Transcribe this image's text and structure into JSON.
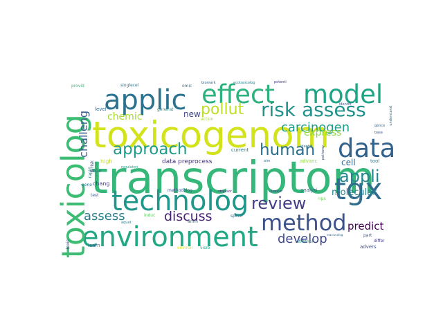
{
  "words": [
    {
      "text": "transcriptom",
      "color": "#35b779"
    },
    {
      "text": "toxicogenom",
      "color": "#d2e21b"
    },
    {
      "text": "environment",
      "color": "#22a884"
    },
    {
      "text": "effect",
      "color": "#2db27d"
    },
    {
      "text": "model",
      "color": "#20a486"
    },
    {
      "text": "applic",
      "color": "#2c728e"
    },
    {
      "text": "technolog",
      "color": "#1f988b"
    },
    {
      "text": "toxicolog",
      "color": "#3dbc74"
    },
    {
      "text": "data",
      "color": "#33638d"
    },
    {
      "text": "tgx",
      "color": "#2f6c8e"
    },
    {
      "text": "method",
      "color": "#3b528b"
    },
    {
      "text": "risk assess",
      "color": "#21918c"
    },
    {
      "text": "approach",
      "color": "#1e9b8a"
    },
    {
      "text": "human",
      "color": "#2d708e"
    },
    {
      "text": "review",
      "color": "#433e85"
    },
    {
      "text": "appli",
      "color": "#24868e"
    },
    {
      "text": "pollut",
      "color": "#bddf26"
    },
    {
      "text": "carcinogen",
      "color": "#1f9e89"
    },
    {
      "text": "discuss",
      "color": "#482173"
    },
    {
      "text": "assess",
      "color": "#26818e"
    },
    {
      "text": "develop",
      "color": "#3e4989"
    },
    {
      "text": "predict",
      "color": "#440154"
    },
    {
      "text": "chemic",
      "color": "#a8db34"
    },
    {
      "text": "challeng",
      "color": "#355f8d"
    },
    {
      "text": "express",
      "color": "#8ed645"
    },
    {
      "text": "molecular",
      "color": "#25838e"
    },
    {
      "text": "cell",
      "color": "#31688e"
    },
    {
      "text": "new",
      "color": "#3f4788"
    },
    {
      "text": "data preprocess",
      "color": "#46337e"
    },
    {
      "text": "current",
      "color": "#2a788e"
    },
    {
      "text": "high",
      "color": "#c2df23"
    },
    {
      "text": "level",
      "color": "#31688e"
    },
    {
      "text": "generat",
      "color": "#21918c"
    },
    {
      "text": "chang",
      "color": "#433e85"
    },
    {
      "text": "test",
      "color": "#3b528b"
    },
    {
      "text": "gene",
      "color": "#2c728e"
    },
    {
      "text": "learn",
      "color": "#33638d"
    },
    {
      "text": "toxic",
      "color": "#414487"
    },
    {
      "text": "accur",
      "color": "#3e4989"
    },
    {
      "text": "rapid",
      "color": "#26828e"
    },
    {
      "text": "risk",
      "color": "#3b528b"
    },
    {
      "text": "provid",
      "color": "#35b779"
    },
    {
      "text": "singlecel",
      "color": "#2a788e"
    },
    {
      "text": "omic",
      "color": "#2c728e"
    },
    {
      "text": "biomark",
      "color": "#31688e"
    },
    {
      "text": "ecotoxicolog",
      "color": "#26828e"
    },
    {
      "text": "potenti",
      "color": "#443983"
    },
    {
      "text": "action",
      "color": "#a8db34"
    },
    {
      "text": "regulatori",
      "color": "#1fa187"
    },
    {
      "text": "methodolog",
      "color": "#3b528b"
    },
    {
      "text": "stressor",
      "color": "#46307e"
    },
    {
      "text": "chapter",
      "color": "#3e4989"
    },
    {
      "text": "analysi",
      "color": "#33638d"
    },
    {
      "text": "identifi",
      "color": "#2a788e"
    },
    {
      "text": "identifi",
      "color": "#3e4989"
    },
    {
      "text": "understand",
      "color": "#2d708e"
    },
    {
      "text": "base",
      "color": "#3b528b"
    },
    {
      "text": "gence",
      "color": "#31688e"
    },
    {
      "text": "tool",
      "color": "#2a788e"
    },
    {
      "text": "advanc",
      "color": "#8fd744"
    },
    {
      "text": "pathway",
      "color": "#365c8d"
    },
    {
      "text": "aim",
      "color": "#2c728e"
    },
    {
      "text": "induc",
      "color": "#5ec962"
    },
    {
      "text": "anim",
      "color": "#2d708e"
    },
    {
      "text": "specif",
      "color": "#2c728e"
    },
    {
      "text": "exampl",
      "color": "#20a486"
    },
    {
      "text": "nps",
      "color": "#6ece58"
    },
    {
      "text": "part",
      "color": "#3b528b"
    },
    {
      "text": "differ",
      "color": "#433e85"
    },
    {
      "text": "advers",
      "color": "#3e4989"
    },
    {
      "text": "aquat",
      "color": "#2a788e"
    },
    {
      "text": "environ",
      "color": "#d8e219"
    },
    {
      "text": "visro",
      "color": "#20a486"
    },
    {
      "text": "macrocolog",
      "color": "#31688e"
    },
    {
      "text": "ident",
      "color": "#3e4989"
    }
  ]
}
